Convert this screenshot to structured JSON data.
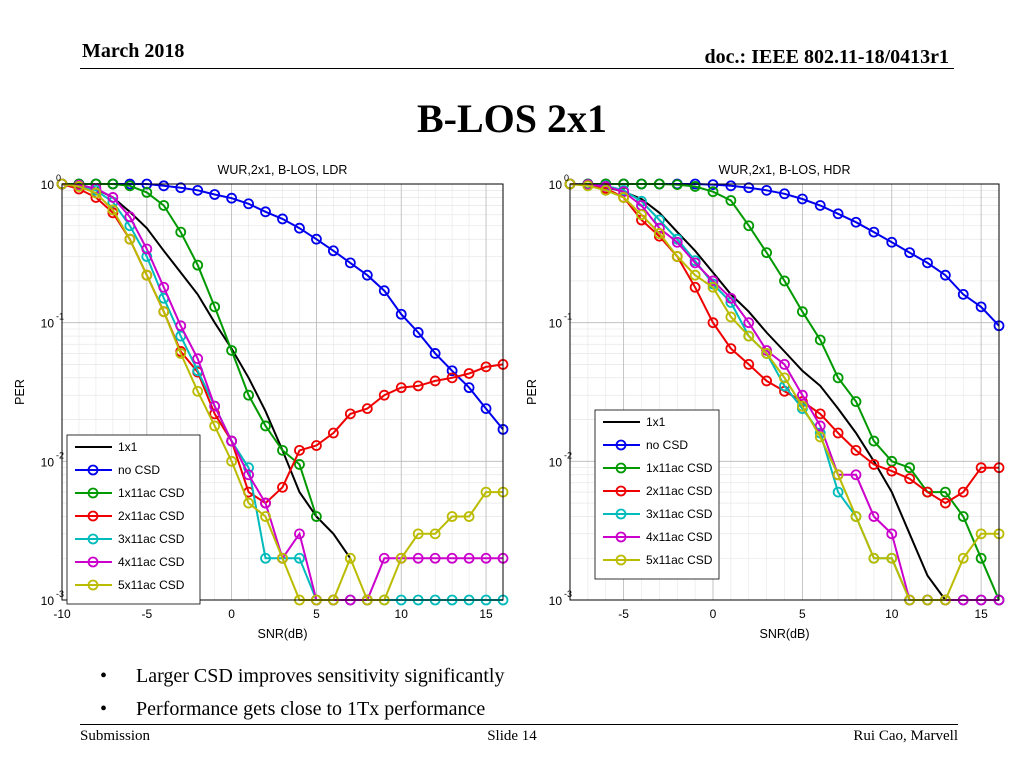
{
  "header": {
    "date": "March 2018",
    "doc": "doc.: IEEE 802.11-18/0413r1"
  },
  "slide_title": "B-LOS 2x1",
  "bullets": [
    "Larger CSD improves sensitivity significantly",
    "Performance gets close to 1Tx performance"
  ],
  "footer": {
    "left": "Submission",
    "center": "Slide 14",
    "right": "Rui Cao, Marvell"
  },
  "chart_data": [
    {
      "type": "line",
      "title": "WUR,2x1, B-LOS, LDR",
      "xlabel": "SNR(dB)",
      "ylabel": "PER",
      "xlim": [
        -10,
        16
      ],
      "ylim": [
        0.001,
        1
      ],
      "yscale": "log",
      "xticks": [
        -10,
        -5,
        0,
        5,
        10,
        15
      ],
      "grid": true,
      "legend_placement": "bottom-left",
      "series": [
        {
          "name": "1x1",
          "color": "#000000",
          "marker": false,
          "x": [
            -10,
            -9,
            -8,
            -7,
            -6,
            -5,
            -4,
            -3,
            -2,
            -1,
            0,
            1,
            2,
            3,
            4,
            5,
            6,
            7
          ],
          "y": [
            1.0,
            0.99,
            0.92,
            0.8,
            0.63,
            0.48,
            0.33,
            0.23,
            0.16,
            0.1,
            0.065,
            0.04,
            0.023,
            0.012,
            0.006,
            0.004,
            0.003,
            0.002
          ]
        },
        {
          "name": "no CSD",
          "color": "#0000ee",
          "marker": true,
          "x": [
            -10,
            -9,
            -8,
            -7,
            -6,
            -5,
            -4,
            -3,
            -2,
            -1,
            0,
            1,
            2,
            3,
            4,
            5,
            6,
            7,
            8,
            9,
            10,
            11,
            12,
            13,
            14,
            15,
            16
          ],
          "y": [
            1.0,
            1.0,
            1.0,
            1.0,
            1.0,
            1.0,
            0.97,
            0.94,
            0.9,
            0.84,
            0.79,
            0.72,
            0.63,
            0.56,
            0.48,
            0.4,
            0.33,
            0.27,
            0.22,
            0.17,
            0.115,
            0.085,
            0.06,
            0.045,
            0.034,
            0.024,
            0.017
          ]
        },
        {
          "name": "1x11ac CSD",
          "color": "#009900",
          "marker": true,
          "x": [
            -10,
            -9,
            -8,
            -7,
            -6,
            -5,
            -4,
            -3,
            -2,
            -1,
            0,
            1,
            2,
            3,
            4,
            5
          ],
          "y": [
            1.0,
            1.0,
            1.0,
            1.0,
            0.97,
            0.87,
            0.7,
            0.45,
            0.26,
            0.13,
            0.063,
            0.03,
            0.018,
            0.012,
            0.0095,
            0.004
          ]
        },
        {
          "name": "2x11ac CSD",
          "color": "#ee0000",
          "marker": true,
          "x": [
            -10,
            -9,
            -8,
            -7,
            -6,
            -5,
            -4,
            -3,
            -2,
            -1,
            0,
            1,
            2,
            3,
            4,
            5,
            6,
            7,
            8,
            9,
            10,
            11,
            12,
            13,
            14,
            15,
            16
          ],
          "y": [
            1.0,
            0.92,
            0.8,
            0.62,
            0.4,
            0.22,
            0.12,
            0.062,
            0.044,
            0.022,
            0.014,
            0.006,
            0.005,
            0.0065,
            0.012,
            0.013,
            0.016,
            0.022,
            0.024,
            0.03,
            0.034,
            0.035,
            0.038,
            0.04,
            0.043,
            0.048,
            0.05
          ]
        },
        {
          "name": "3x11ac CSD",
          "color": "#00bbbb",
          "marker": true,
          "x": [
            -10,
            -9,
            -8,
            -7,
            -6,
            -5,
            -4,
            -3,
            -2,
            -1,
            0,
            1,
            2,
            3,
            4,
            5,
            6,
            7,
            8,
            9,
            10,
            11,
            12,
            13,
            14,
            15,
            16
          ],
          "y": [
            1.0,
            0.97,
            0.9,
            0.74,
            0.5,
            0.3,
            0.15,
            0.08,
            0.045,
            0.025,
            0.014,
            0.009,
            0.002,
            0.002,
            0.002,
            0.001,
            0.001,
            0.001,
            0.001,
            0.001,
            0.001,
            0.001,
            0.001,
            0.001,
            0.001,
            0.001,
            0.001
          ]
        },
        {
          "name": "4x11ac CSD",
          "color": "#cc00cc",
          "marker": true,
          "x": [
            -10,
            -9,
            -8,
            -7,
            -6,
            -5,
            -4,
            -3,
            -2,
            -1,
            0,
            1,
            2,
            3,
            4,
            5,
            6,
            7,
            8,
            9,
            10,
            11,
            12,
            13,
            14,
            15,
            16
          ],
          "y": [
            1.0,
            0.98,
            0.93,
            0.8,
            0.58,
            0.34,
            0.18,
            0.095,
            0.055,
            0.025,
            0.014,
            0.008,
            0.005,
            0.002,
            0.003,
            0.001,
            0.001,
            0.001,
            0.001,
            0.002,
            0.002,
            0.002,
            0.002,
            0.002,
            0.002,
            0.002,
            0.002
          ]
        },
        {
          "name": "5x11ac CSD",
          "color": "#bbbb00",
          "marker": true,
          "x": [
            -10,
            -9,
            -8,
            -7,
            -6,
            -5,
            -4,
            -3,
            -2,
            -1,
            0,
            1,
            2,
            3,
            4,
            5,
            6,
            7,
            8,
            9,
            10,
            11,
            12,
            13,
            14,
            15,
            16
          ],
          "y": [
            1.0,
            0.96,
            0.86,
            0.65,
            0.4,
            0.22,
            0.12,
            0.06,
            0.032,
            0.018,
            0.01,
            0.005,
            0.004,
            0.002,
            0.001,
            0.001,
            0.001,
            0.002,
            0.001,
            0.001,
            0.002,
            0.003,
            0.003,
            0.004,
            0.004,
            0.006,
            0.006
          ]
        }
      ]
    },
    {
      "type": "line",
      "title": "WUR,2x1, B-LOS, HDR",
      "xlabel": "SNR(dB)",
      "ylabel": "PER",
      "xlim": [
        -8,
        16
      ],
      "ylim": [
        0.001,
        1
      ],
      "yscale": "log",
      "xticks": [
        -5,
        0,
        5,
        10,
        15
      ],
      "grid": true,
      "legend_placement": "bottom-right",
      "series": [
        {
          "name": "1x1",
          "color": "#000000",
          "marker": false,
          "x": [
            -8,
            -7,
            -6,
            -5,
            -4,
            -3,
            -2,
            -1,
            0,
            1,
            2,
            3,
            4,
            5,
            6,
            7,
            8,
            9,
            10,
            11,
            12,
            13
          ],
          "y": [
            1.0,
            0.99,
            0.95,
            0.88,
            0.78,
            0.62,
            0.45,
            0.33,
            0.23,
            0.16,
            0.12,
            0.085,
            0.062,
            0.045,
            0.035,
            0.024,
            0.016,
            0.01,
            0.006,
            0.003,
            0.0015,
            0.001
          ]
        },
        {
          "name": "no CSD",
          "color": "#0000ee",
          "marker": true,
          "x": [
            -8,
            -7,
            -6,
            -5,
            -4,
            -3,
            -2,
            -1,
            0,
            1,
            2,
            3,
            4,
            5,
            6,
            7,
            8,
            9,
            10,
            11,
            12,
            13,
            14,
            15,
            16
          ],
          "y": [
            1.0,
            1.0,
            1.0,
            1.0,
            1.0,
            1.0,
            1.0,
            1.0,
            0.99,
            0.97,
            0.94,
            0.9,
            0.85,
            0.78,
            0.7,
            0.61,
            0.53,
            0.45,
            0.38,
            0.32,
            0.27,
            0.22,
            0.16,
            0.13,
            0.095
          ]
        },
        {
          "name": "1x11ac CSD",
          "color": "#009900",
          "marker": true,
          "x": [
            -8,
            -7,
            -6,
            -5,
            -4,
            -3,
            -2,
            -1,
            0,
            1,
            2,
            3,
            4,
            5,
            6,
            7,
            8,
            9,
            10,
            11,
            12,
            13,
            14,
            15,
            16
          ],
          "y": [
            1.0,
            1.0,
            1.0,
            1.0,
            1.0,
            1.0,
            0.99,
            0.96,
            0.88,
            0.76,
            0.5,
            0.32,
            0.2,
            0.12,
            0.075,
            0.04,
            0.027,
            0.014,
            0.01,
            0.009,
            0.006,
            0.006,
            0.004,
            0.002,
            0.001
          ]
        },
        {
          "name": "2x11ac CSD",
          "color": "#ee0000",
          "marker": true,
          "x": [
            -8,
            -7,
            -6,
            -5,
            -4,
            -3,
            -2,
            -1,
            0,
            1,
            2,
            3,
            4,
            5,
            6,
            7,
            8,
            9,
            10,
            11,
            12,
            13,
            14,
            15,
            16
          ],
          "y": [
            1.0,
            0.98,
            0.93,
            0.8,
            0.55,
            0.42,
            0.3,
            0.18,
            0.1,
            0.065,
            0.05,
            0.038,
            0.032,
            0.027,
            0.022,
            0.016,
            0.012,
            0.0095,
            0.0085,
            0.0075,
            0.006,
            0.005,
            0.006,
            0.009,
            0.009
          ]
        },
        {
          "name": "3x11ac CSD",
          "color": "#00bbbb",
          "marker": true,
          "x": [
            -8,
            -7,
            -6,
            -5,
            -4,
            -3,
            -2,
            -1,
            0,
            1,
            2,
            3,
            4,
            5,
            6,
            7,
            8,
            9,
            10,
            11,
            12,
            13,
            14,
            15,
            16
          ],
          "y": [
            1.0,
            0.99,
            0.97,
            0.9,
            0.75,
            0.55,
            0.4,
            0.28,
            0.19,
            0.14,
            0.08,
            0.06,
            0.035,
            0.024,
            0.016,
            0.006,
            0.004,
            0.002,
            0.002,
            0.001,
            0.001,
            0.001,
            0.001,
            0.001,
            0.001
          ]
        },
        {
          "name": "4x11ac CSD",
          "color": "#cc00cc",
          "marker": true,
          "x": [
            -8,
            -7,
            -6,
            -5,
            -4,
            -3,
            -2,
            -1,
            0,
            1,
            2,
            3,
            4,
            5,
            6,
            7,
            8,
            9,
            10,
            11,
            12,
            13,
            14,
            15,
            16
          ],
          "y": [
            1.0,
            0.99,
            0.96,
            0.88,
            0.7,
            0.48,
            0.38,
            0.27,
            0.2,
            0.15,
            0.1,
            0.063,
            0.05,
            0.03,
            0.018,
            0.008,
            0.008,
            0.004,
            0.003,
            0.001,
            0.001,
            0.001,
            0.001,
            0.001,
            0.001
          ]
        },
        {
          "name": "5x11ac CSD",
          "color": "#bbbb00",
          "marker": true,
          "x": [
            -8,
            -7,
            -6,
            -5,
            -4,
            -3,
            -2,
            -1,
            0,
            1,
            2,
            3,
            4,
            5,
            6,
            7,
            8,
            9,
            10,
            11,
            12,
            13,
            14,
            15,
            16
          ],
          "y": [
            1.0,
            0.97,
            0.9,
            0.8,
            0.6,
            0.44,
            0.3,
            0.22,
            0.18,
            0.11,
            0.08,
            0.06,
            0.04,
            0.025,
            0.015,
            0.008,
            0.004,
            0.002,
            0.002,
            0.001,
            0.001,
            0.001,
            0.002,
            0.003,
            0.003
          ]
        }
      ]
    }
  ]
}
